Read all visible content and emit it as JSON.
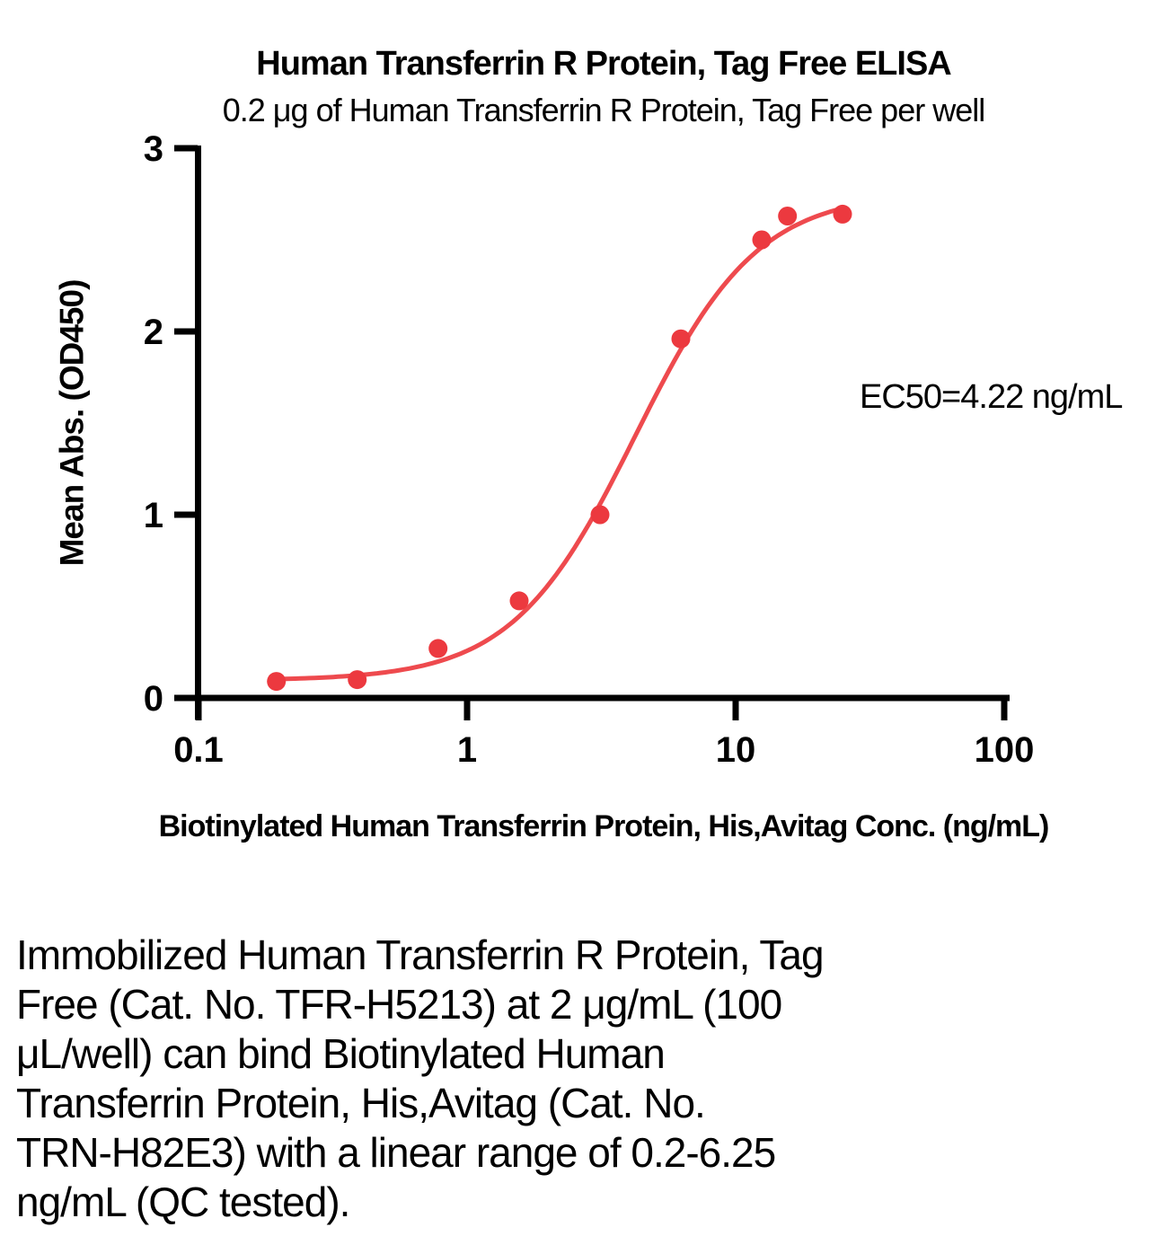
{
  "chart_data": {
    "type": "scatter",
    "title": "Human Transferrin R Protein, Tag Free ELISA",
    "subtitle": "0.2 μg of Human Transferrin R Protein, Tag Free per well",
    "xlabel": "Biotinylated Human Transferrin Protein, His,Avitag Conc. (ng/mL)",
    "ylabel": "Mean Abs. (OD450)",
    "x_scale": "log",
    "xlim": [
      0.1,
      100
    ],
    "ylim": [
      0,
      3
    ],
    "x_ticks": [
      0.1,
      1,
      10,
      100
    ],
    "x_tick_labels": [
      "0.1",
      "1",
      "10",
      "100"
    ],
    "y_ticks": [
      0,
      1,
      2,
      3
    ],
    "y_tick_labels": [
      "0",
      "1",
      "2",
      "3"
    ],
    "grid": false,
    "legend": "none",
    "series": [
      {
        "name": "Biotinylated Human Transferrin Protein, His,Avitag",
        "x": [
          0.195,
          0.39,
          0.78,
          1.5625,
          3.125,
          6.25,
          12.5,
          15.6,
          25
        ],
        "y": [
          0.09,
          0.1,
          0.27,
          0.53,
          1.0,
          1.96,
          2.5,
          2.63,
          2.64
        ]
      }
    ],
    "fit_curve": {
      "model": "4PL",
      "bottom": 0.095,
      "top": 2.76,
      "ec50": 4.22,
      "hill": 1.9,
      "x_range": [
        0.195,
        25.5
      ]
    },
    "annotation": "EC50=4.22 ng/mL",
    "ec50_ng_ml": 4.22,
    "colors": {
      "points": "#ec393f",
      "curve": "#ee4a4e",
      "axis": "#000000"
    }
  },
  "description": {
    "lines": [
      "Immobilized Human Transferrin R Protein, Tag",
      "Free (Cat. No. TFR-H5213) at 2 μg/mL (100",
      "μL/well) can bind Biotinylated Human",
      "Transferrin Protein, His,Avitag (Cat. No.",
      "TRN-H82E3) with a linear range of 0.2-6.25",
      "ng/mL (QC tested)."
    ]
  }
}
